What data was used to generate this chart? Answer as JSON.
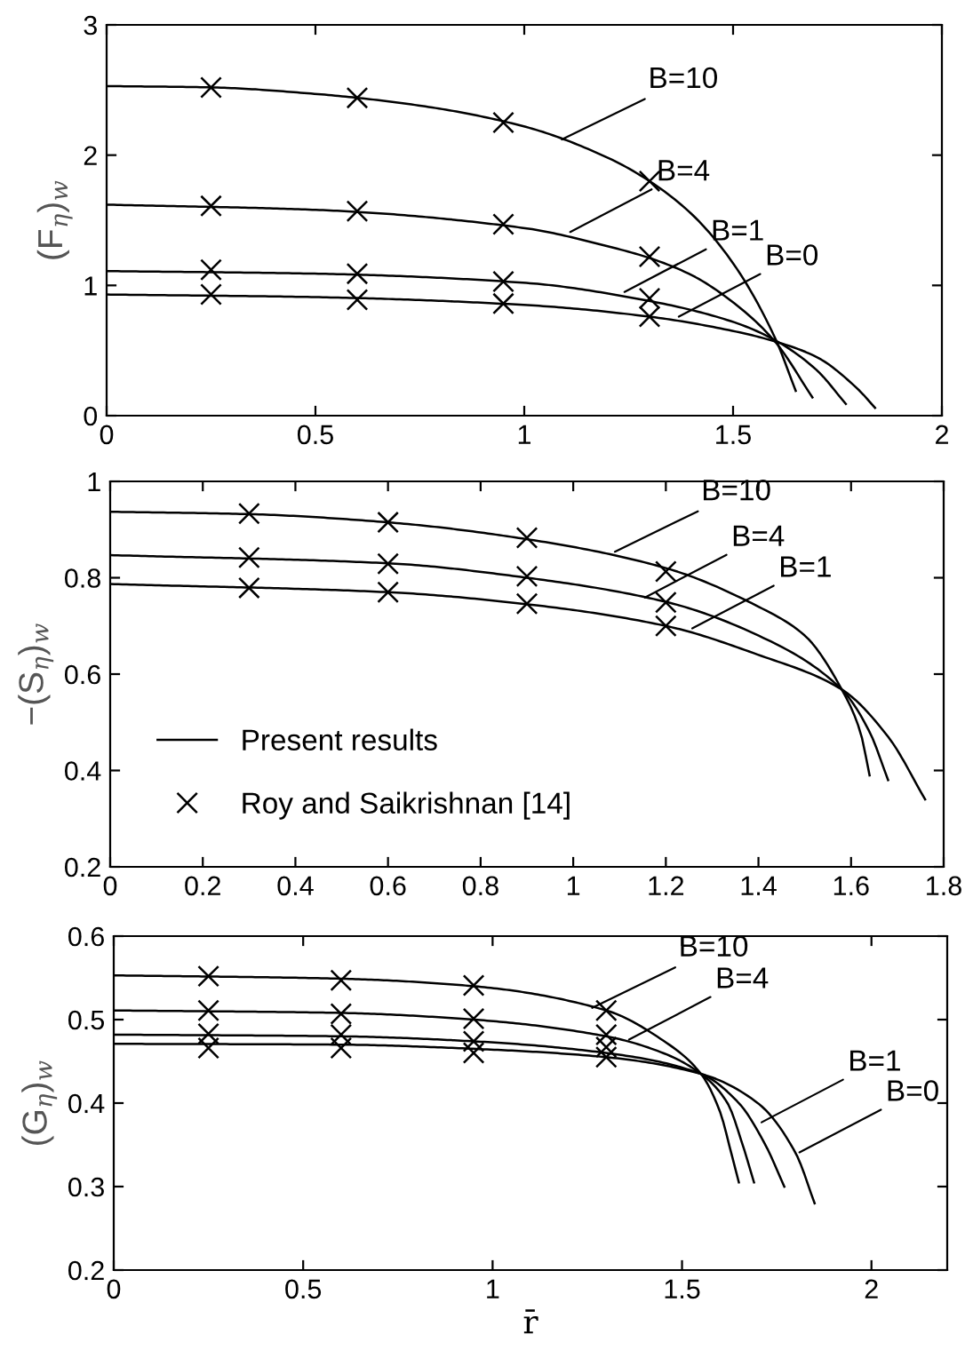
{
  "chart_data": [
    {
      "type": "line",
      "ylabel": "(F$_{η}$)$_{w}$",
      "xlim": [
        0,
        2
      ],
      "xticks": [
        0,
        0.5,
        1,
        1.5,
        2
      ],
      "ylim": [
        0,
        3
      ],
      "yticks": [
        0,
        1,
        2,
        3
      ],
      "grid": false,
      "series": [
        {
          "color": "#000000",
          "x": [
            0,
            0.25,
            0.5,
            0.75,
            1.0,
            1.2,
            1.3,
            1.4,
            1.5,
            1.6,
            1.65
          ],
          "values": [
            2.53,
            2.52,
            2.47,
            2.38,
            2.22,
            1.98,
            1.8,
            1.55,
            1.17,
            0.6,
            0.19
          ]
        },
        {
          "color": "#000000",
          "x": [
            0,
            0.5,
            1.0,
            1.2,
            1.3,
            1.4,
            1.5,
            1.6,
            1.69
          ],
          "values": [
            1.62,
            1.58,
            1.44,
            1.3,
            1.21,
            1.08,
            0.87,
            0.57,
            0.14
          ]
        },
        {
          "color": "#000000",
          "x": [
            0,
            0.5,
            1.0,
            1.3,
            1.5,
            1.6,
            1.7,
            1.77
          ],
          "values": [
            1.11,
            1.09,
            1.02,
            0.88,
            0.72,
            0.58,
            0.35,
            0.09
          ]
        },
        {
          "color": "#000000",
          "x": [
            0,
            0.5,
            1.0,
            1.3,
            1.5,
            1.6,
            1.7,
            1.8,
            1.84
          ],
          "values": [
            0.93,
            0.91,
            0.85,
            0.76,
            0.65,
            0.57,
            0.45,
            0.2,
            0.06
          ]
        },
        {
          "type": "scatter",
          "marker": "cross",
          "color": "#000000",
          "x": [
            0.25,
            0.6,
            0.95,
            1.3
          ],
          "values": [
            2.52,
            2.44,
            2.25,
            1.8
          ]
        },
        {
          "type": "scatter",
          "marker": "cross",
          "color": "#000000",
          "x": [
            0.25,
            0.6,
            0.95,
            1.3
          ],
          "values": [
            1.61,
            1.57,
            1.47,
            1.22
          ]
        },
        {
          "type": "scatter",
          "marker": "cross",
          "color": "#000000",
          "x": [
            0.25,
            0.6,
            0.95,
            1.3
          ],
          "values": [
            1.12,
            1.09,
            1.03,
            0.9
          ]
        },
        {
          "type": "scatter",
          "marker": "cross",
          "color": "#000000",
          "x": [
            0.25,
            0.6,
            0.95,
            1.3
          ],
          "values": [
            0.93,
            0.89,
            0.86,
            0.76
          ]
        }
      ],
      "annotations": [
        {
          "text": "B=10",
          "x": 1.09,
          "y": 2.12
        },
        {
          "text": "B=4",
          "x": 1.11,
          "y": 1.41
        },
        {
          "text": "B=1",
          "x": 1.24,
          "y": 0.95
        },
        {
          "text": "B=0",
          "x": 1.37,
          "y": 0.76
        }
      ]
    },
    {
      "type": "line",
      "ylabel": "−(S$_{η}$)$_{w}$",
      "xlim": [
        0,
        1.8
      ],
      "xticks": [
        0,
        0.2,
        0.4,
        0.6,
        0.8,
        1,
        1.2,
        1.4,
        1.6,
        1.8
      ],
      "ylim": [
        0.2,
        1
      ],
      "yticks": [
        0.2,
        0.4,
        0.6,
        0.8,
        1
      ],
      "grid": false,
      "legend": "lower left",
      "series": [
        {
          "name": "Present results",
          "color": "#000000",
          "x": [
            0,
            0.3,
            0.6,
            0.9,
            1.2,
            1.4,
            1.5,
            1.58,
            1.62,
            1.64
          ],
          "values": [
            0.937,
            0.932,
            0.915,
            0.88,
            0.82,
            0.74,
            0.68,
            0.568,
            0.48,
            0.39
          ]
        },
        {
          "color": "#000000",
          "x": [
            0,
            0.6,
            0.9,
            1.2,
            1.4,
            1.58,
            1.64,
            1.68
          ],
          "values": [
            0.847,
            0.83,
            0.8,
            0.75,
            0.68,
            0.568,
            0.48,
            0.38
          ]
        },
        {
          "color": "#000000",
          "x": [
            0,
            0.6,
            0.9,
            1.2,
            1.4,
            1.58,
            1.68,
            1.76
          ],
          "values": [
            0.787,
            0.77,
            0.745,
            0.7,
            0.64,
            0.568,
            0.47,
            0.34
          ]
        },
        {
          "type": "scatter",
          "name": "Roy and Saikrishnan [14]",
          "marker": "cross",
          "color": "#000000",
          "x": [
            0.3,
            0.6,
            0.9,
            1.2
          ],
          "values": [
            0.933,
            0.915,
            0.883,
            0.813
          ]
        },
        {
          "type": "scatter",
          "marker": "cross",
          "color": "#000000",
          "x": [
            0.3,
            0.6,
            0.9,
            1.2
          ],
          "values": [
            0.842,
            0.829,
            0.803,
            0.749
          ]
        },
        {
          "type": "scatter",
          "marker": "cross",
          "color": "#000000",
          "x": [
            0.3,
            0.6,
            0.9,
            1.2
          ],
          "values": [
            0.779,
            0.77,
            0.746,
            0.7
          ]
        }
      ],
      "annotations": [
        {
          "text": "B=10",
          "x": 1.09,
          "y": 0.854
        },
        {
          "text": "B=4",
          "x": 1.155,
          "y": 0.759
        },
        {
          "text": "B=1",
          "x": 1.257,
          "y": 0.695
        }
      ]
    },
    {
      "type": "line",
      "xlabel": "r̄",
      "ylabel": "(G$_{η}$)$_{w}$",
      "xlim": [
        0,
        2.2
      ],
      "xticks": [
        0,
        0.5,
        1,
        1.5,
        2
      ],
      "ylim": [
        0.2,
        0.6
      ],
      "yticks": [
        0.2,
        0.3,
        0.4,
        0.5,
        0.6
      ],
      "grid": false,
      "series": [
        {
          "color": "#000000",
          "x": [
            0,
            0.6,
            0.95,
            1.3,
            1.45,
            1.55,
            1.6,
            1.63,
            1.65
          ],
          "values": [
            0.553,
            0.549,
            0.54,
            0.511,
            0.475,
            0.435,
            0.39,
            0.34,
            0.305
          ]
        },
        {
          "color": "#000000",
          "x": [
            0,
            0.6,
            0.95,
            1.3,
            1.45,
            1.55,
            1.62,
            1.66,
            1.69
          ],
          "values": [
            0.511,
            0.508,
            0.5,
            0.48,
            0.46,
            0.435,
            0.4,
            0.35,
            0.305
          ]
        },
        {
          "color": "#000000",
          "x": [
            0,
            0.6,
            0.95,
            1.3,
            1.55,
            1.65,
            1.72,
            1.77
          ],
          "values": [
            0.482,
            0.48,
            0.474,
            0.46,
            0.435,
            0.4,
            0.35,
            0.3
          ]
        },
        {
          "color": "#000000",
          "x": [
            0,
            0.6,
            0.95,
            1.3,
            1.55,
            1.7,
            1.8,
            1.85
          ],
          "values": [
            0.471,
            0.47,
            0.465,
            0.455,
            0.435,
            0.4,
            0.34,
            0.28
          ]
        },
        {
          "type": "scatter",
          "marker": "cross",
          "color": "#000000",
          "x": [
            0.25,
            0.6,
            0.95,
            1.3
          ],
          "values": [
            0.552,
            0.547,
            0.541,
            0.511
          ]
        },
        {
          "type": "scatter",
          "marker": "cross",
          "color": "#000000",
          "x": [
            0.25,
            0.6,
            0.95,
            1.3
          ],
          "values": [
            0.511,
            0.507,
            0.501,
            0.482
          ]
        },
        {
          "type": "scatter",
          "marker": "cross",
          "color": "#000000",
          "x": [
            0.25,
            0.6,
            0.95,
            1.3
          ],
          "values": [
            0.483,
            0.482,
            0.474,
            0.467
          ]
        },
        {
          "type": "scatter",
          "marker": "cross",
          "color": "#000000",
          "x": [
            0.25,
            0.6,
            0.95,
            1.3
          ],
          "values": [
            0.466,
            0.466,
            0.46,
            0.455
          ]
        }
      ],
      "annotations": [
        {
          "text": "B=10",
          "x": 1.263,
          "y": 0.514
        },
        {
          "text": "B=4",
          "x": 1.36,
          "y": 0.476
        },
        {
          "text": "B=1",
          "x": 1.71,
          "y": 0.377
        },
        {
          "text": "B=0",
          "x": 1.81,
          "y": 0.341
        }
      ]
    }
  ]
}
